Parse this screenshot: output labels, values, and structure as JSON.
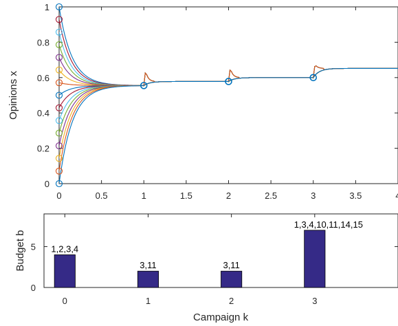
{
  "chart_data": [
    {
      "type": "line",
      "ylabel": "Opinions x",
      "xlim": [
        0,
        4
      ],
      "ylim": [
        0,
        1
      ],
      "xticks": [
        0,
        0.5,
        1,
        1.5,
        2,
        2.5,
        3,
        3.5,
        4
      ],
      "xtick_labels": [
        "0",
        "0.5",
        "1",
        "1.5",
        "2",
        "2.5",
        "3",
        "3.5",
        "4"
      ],
      "yticks": [
        0,
        0.2,
        0.4,
        0.6,
        0.8,
        1
      ],
      "ytick_labels": [
        "0",
        "0.2",
        "0.4",
        "0.6",
        "0.8",
        "1"
      ],
      "grid": false,
      "initial_opinions": [
        1.0,
        0.929,
        0.857,
        0.786,
        0.714,
        0.643,
        0.571,
        0.5,
        0.429,
        0.357,
        0.286,
        0.214,
        0.143,
        0.071,
        0.0
      ],
      "series_colors": [
        "#0072BD",
        "#A2142F",
        "#4DBEEE",
        "#77AC30",
        "#7E2F8E",
        "#EDB120",
        "#D95319",
        "#0072BD",
        "#A2142F",
        "#4DBEEE",
        "#77AC30",
        "#7E2F8E",
        "#EDB120",
        "#D95319",
        "#0072BD"
      ],
      "campaign_means": [
        {
          "k": 1,
          "value": 0.555
        },
        {
          "k": 2,
          "value": 0.578
        },
        {
          "k": 3,
          "value": 0.6
        },
        {
          "k": 4,
          "value": 0.652
        }
      ],
      "campaign_spikes": [
        {
          "k": 1,
          "peak": 0.64,
          "color": "#A2142F"
        },
        {
          "k": 2,
          "peak": 0.655,
          "color": "#A2142F"
        },
        {
          "k": 3,
          "peak": 0.675,
          "color": "#A2142F"
        }
      ]
    },
    {
      "type": "bar",
      "xlabel": "Campaign k",
      "ylabel": "Budget b",
      "xlim": [
        -0.25,
        4
      ],
      "ylim": [
        0,
        9
      ],
      "xticks": [
        0,
        1,
        2,
        3
      ],
      "xtick_labels": [
        "0",
        "1",
        "2",
        "3"
      ],
      "yticks": [
        0,
        5
      ],
      "ytick_labels": [
        "0",
        "5"
      ],
      "categories": [
        0,
        1,
        2,
        3
      ],
      "values": [
        4,
        2,
        2,
        7
      ],
      "bar_labels": [
        "1,2,3,4",
        "3,11",
        "3,11",
        "1,3,4,10,11,14,15"
      ],
      "bar_color": "#352a87"
    }
  ]
}
